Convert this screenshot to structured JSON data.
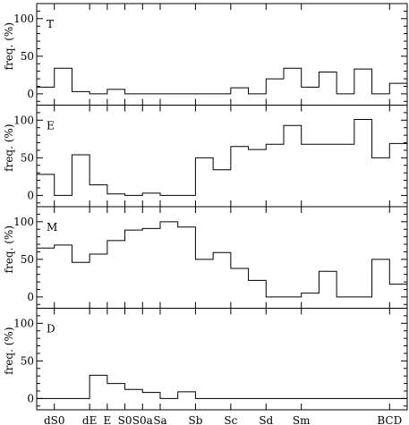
{
  "chart_data": {
    "type": "step",
    "ylim": [
      -15,
      120
    ],
    "xlim": [
      0,
      21
    ],
    "y_ticks": [
      0,
      50,
      100
    ],
    "y_tick_labels": [
      "0",
      "50",
      "100"
    ],
    "x_categories": [
      {
        "label": "dS0",
        "x": 1.0
      },
      {
        "label": "dE",
        "x": 3.0
      },
      {
        "label": "E",
        "x": 4.0
      },
      {
        "label": "S0",
        "x": 5.0
      },
      {
        "label": "S0a",
        "x": 6.0
      },
      {
        "label": "Sa",
        "x": 7.0
      },
      {
        "label": "Sb",
        "x": 9.0
      },
      {
        "label": "Sc",
        "x": 11.0
      },
      {
        "label": "Sd",
        "x": 13.0
      },
      {
        "label": "Sm",
        "x": 15.0
      },
      {
        "label": "BCD",
        "x": 20.0
      }
    ],
    "panels": [
      {
        "label": "T",
        "ylabel": "freq. (%)",
        "bins": [
          {
            "x0": 0,
            "x1": 1,
            "y": 9
          },
          {
            "x0": 1,
            "x1": 2,
            "y": 34
          },
          {
            "x0": 2,
            "x1": 3,
            "y": 3
          },
          {
            "x0": 3,
            "x1": 4,
            "y": 0
          },
          {
            "x0": 4,
            "x1": 5,
            "y": 6
          },
          {
            "x0": 5,
            "x1": 11,
            "y": 0
          },
          {
            "x0": 11,
            "x1": 12,
            "y": 8
          },
          {
            "x0": 12,
            "x1": 13,
            "y": 0
          },
          {
            "x0": 13,
            "x1": 14,
            "y": 20
          },
          {
            "x0": 14,
            "x1": 15,
            "y": 34
          },
          {
            "x0": 15,
            "x1": 16,
            "y": 9
          },
          {
            "x0": 16,
            "x1": 17,
            "y": 29
          },
          {
            "x0": 17,
            "x1": 18,
            "y": 0
          },
          {
            "x0": 18,
            "x1": 19,
            "y": 33
          },
          {
            "x0": 19,
            "x1": 20,
            "y": 0
          },
          {
            "x0": 20,
            "x1": 21,
            "y": 14
          }
        ]
      },
      {
        "label": "E",
        "ylabel": "freq. (%)",
        "bins": [
          {
            "x0": 0,
            "x1": 1,
            "y": 28
          },
          {
            "x0": 1,
            "x1": 2,
            "y": 0
          },
          {
            "x0": 2,
            "x1": 3,
            "y": 54
          },
          {
            "x0": 3,
            "x1": 4,
            "y": 14
          },
          {
            "x0": 4,
            "x1": 5,
            "y": 2
          },
          {
            "x0": 5,
            "x1": 6,
            "y": 0
          },
          {
            "x0": 6,
            "x1": 7,
            "y": 3
          },
          {
            "x0": 7,
            "x1": 9,
            "y": 0
          },
          {
            "x0": 9,
            "x1": 10,
            "y": 50
          },
          {
            "x0": 10,
            "x1": 11,
            "y": 34
          },
          {
            "x0": 11,
            "x1": 12,
            "y": 65
          },
          {
            "x0": 12,
            "x1": 13,
            "y": 61
          },
          {
            "x0": 13,
            "x1": 14,
            "y": 68
          },
          {
            "x0": 14,
            "x1": 15,
            "y": 93
          },
          {
            "x0": 15,
            "x1": 18,
            "y": 68
          },
          {
            "x0": 18,
            "x1": 19,
            "y": 101
          },
          {
            "x0": 19,
            "x1": 20,
            "y": 50
          },
          {
            "x0": 20,
            "x1": 21,
            "y": 69
          }
        ]
      },
      {
        "label": "M",
        "ylabel": "freq. (%)",
        "bins": [
          {
            "x0": 0,
            "x1": 1,
            "y": 65
          },
          {
            "x0": 1,
            "x1": 2,
            "y": 69
          },
          {
            "x0": 2,
            "x1": 3,
            "y": 46
          },
          {
            "x0": 3,
            "x1": 4,
            "y": 57
          },
          {
            "x0": 4,
            "x1": 5,
            "y": 75
          },
          {
            "x0": 5,
            "x1": 6,
            "y": 89
          },
          {
            "x0": 6,
            "x1": 7,
            "y": 91
          },
          {
            "x0": 7,
            "x1": 8,
            "y": 100
          },
          {
            "x0": 8,
            "x1": 9,
            "y": 93
          },
          {
            "x0": 9,
            "x1": 10,
            "y": 50
          },
          {
            "x0": 10,
            "x1": 11,
            "y": 59
          },
          {
            "x0": 11,
            "x1": 12,
            "y": 38
          },
          {
            "x0": 12,
            "x1": 13,
            "y": 22
          },
          {
            "x0": 13,
            "x1": 15,
            "y": 0
          },
          {
            "x0": 15,
            "x1": 16,
            "y": 5
          },
          {
            "x0": 16,
            "x1": 17,
            "y": 34
          },
          {
            "x0": 17,
            "x1": 19,
            "y": 0
          },
          {
            "x0": 19,
            "x1": 20,
            "y": 50
          },
          {
            "x0": 20,
            "x1": 21,
            "y": 17
          }
        ]
      },
      {
        "label": "D",
        "ylabel": "freq. (%)",
        "bins": [
          {
            "x0": 0,
            "x1": 3,
            "y": 0
          },
          {
            "x0": 3,
            "x1": 4,
            "y": 31
          },
          {
            "x0": 4,
            "x1": 5,
            "y": 20
          },
          {
            "x0": 5,
            "x1": 6,
            "y": 12
          },
          {
            "x0": 6,
            "x1": 7,
            "y": 8
          },
          {
            "x0": 7,
            "x1": 8,
            "y": 0
          },
          {
            "x0": 8,
            "x1": 9,
            "y": 9
          },
          {
            "x0": 9,
            "x1": 21,
            "y": 0
          }
        ]
      }
    ]
  }
}
